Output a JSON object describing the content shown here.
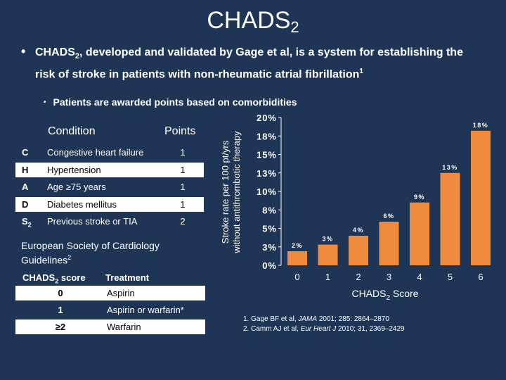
{
  "title": {
    "main": "CHADS",
    "sub": "2"
  },
  "bullet1": {
    "text": "CHADS2, developed and validated by Gage et al, is a system for establishing the risk of stroke in patients with non-rheumatic atrial fibrillation1"
  },
  "bullet2": {
    "text": "Patients are awarded points based on comorbidities"
  },
  "condition_table": {
    "header_condition": "Condition",
    "header_points": "Points",
    "rows": [
      {
        "letter": "C",
        "condition": "Congestive heart failure",
        "points": "1"
      },
      {
        "letter": "H",
        "condition": "Hypertension",
        "points": "1"
      },
      {
        "letter": "A",
        "condition": "Age ≥75 years",
        "points": "1"
      },
      {
        "letter": "D",
        "condition": "Diabetes mellitus",
        "points": "1"
      },
      {
        "letter": "S",
        "letter_sub": "2",
        "condition": "Previous stroke or TIA",
        "points": "2"
      }
    ]
  },
  "esc": {
    "text": "European Society of Cardiology Guidelines",
    "sup": "2"
  },
  "treatment_table": {
    "header_score": "CHADS",
    "header_score_sub": "2",
    "header_score_tail": " score",
    "header_treatment": "Treatment",
    "rows": [
      {
        "score": "0",
        "treatment": "Aspirin"
      },
      {
        "score": "1",
        "treatment": "Aspirin or warfarin*"
      },
      {
        "score": "≥2",
        "treatment": "Warfarin"
      }
    ]
  },
  "references": {
    "r1_pre": "1.  Gage BF et al, ",
    "r1_journal": "JAMA",
    "r1_post": " 2001; 285: 2864–2870",
    "r2_pre": "2.  Camm AJ et al, ",
    "r2_journal": "Eur Heart J",
    "r2_post": " 2010; 31, 2369–2429"
  },
  "chart_data": {
    "type": "bar",
    "categories": [
      "0",
      "1",
      "2",
      "3",
      "4",
      "5",
      "6"
    ],
    "values": [
      1.9,
      2.8,
      4.0,
      5.9,
      8.5,
      12.5,
      18.2
    ],
    "value_labels": [
      "2%",
      "3%",
      "4%",
      "6%",
      "9%",
      "13%",
      "18%"
    ],
    "xlabel": "CHADS2 Score",
    "ylabel_line1": "Stroke rate per 100 pt/yrs",
    "ylabel_line2": "without antithrombotic therapy",
    "ylim": [
      0,
      20
    ],
    "yticks": [
      "0%",
      "3%",
      "5%",
      "8%",
      "10%",
      "13%",
      "15%",
      "18%",
      "20%"
    ],
    "ytick_values": [
      0,
      2.5,
      5,
      7.5,
      10,
      12.5,
      15,
      17.5,
      20
    ],
    "bar_color": "#f08a3c",
    "grid": false
  }
}
